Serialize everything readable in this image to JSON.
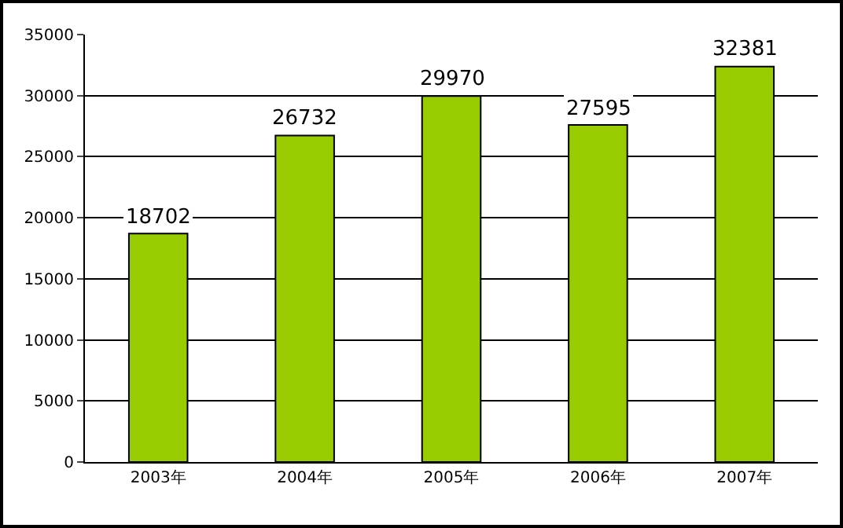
{
  "chart_data": {
    "type": "bar",
    "categories": [
      "2003年",
      "2004年",
      "2005年",
      "2006年",
      "2007年"
    ],
    "values": [
      18702,
      26732,
      29970,
      27595,
      32381
    ],
    "color": "#99cc00",
    "ylim": [
      0,
      35000
    ],
    "yticks": [
      0,
      5000,
      10000,
      15000,
      20000,
      25000,
      30000,
      35000
    ],
    "grid": "y",
    "data_labels": true,
    "legend": false
  }
}
